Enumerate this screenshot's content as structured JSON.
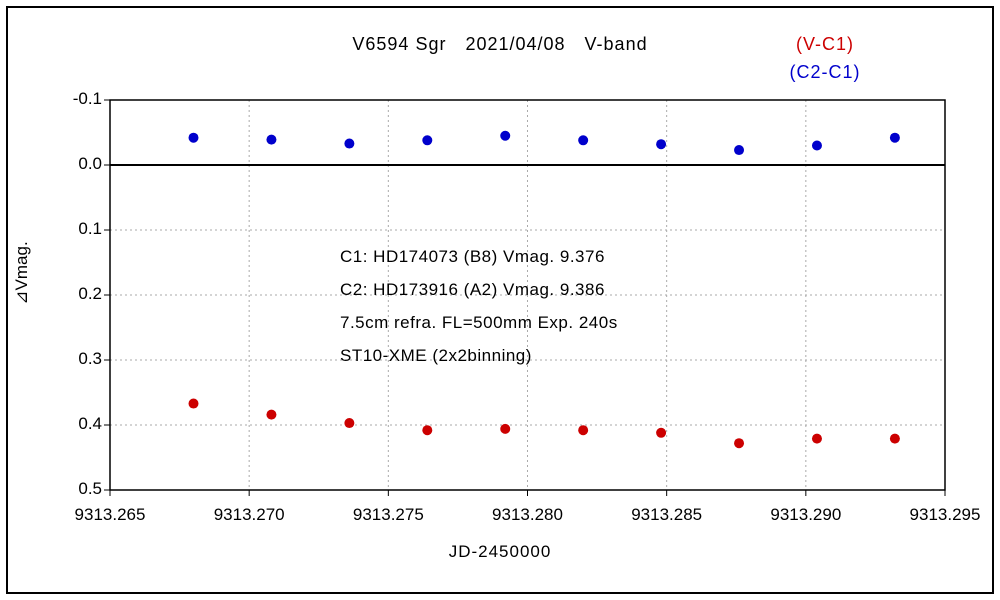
{
  "title": "V6594 Sgr　2021/04/08　V-band",
  "legend": {
    "v_c1": "(V-C1)",
    "c2_c1": "(C2-C1)"
  },
  "annotation": [
    "C1: HD174073 (B8) Vmag. 9.376",
    "C2: HD173916 (A2) Vmag. 9.386",
    "7.5cm refra. FL=500mm  Exp. 240s",
    "ST10-XME (2x2binning)"
  ],
  "colors": {
    "v_c1": "#cc0000",
    "c2_c1": "#0000cc",
    "grid": "#aaaaaa",
    "axis": "#000000",
    "background": "#ffffff"
  },
  "chart_data": {
    "type": "scatter",
    "title": "V6594 Sgr 2021/04/08 V-band",
    "xlabel": "JD-2450000",
    "ylabel": "⊿Vmag.",
    "xlim": [
      9313.265,
      9313.295
    ],
    "ylim": [
      -0.1,
      0.5
    ],
    "y_axis_note": "magnitude axis inverted style: -0.1 at top, 0.5 at bottom",
    "x_ticks": [
      9313.265,
      9313.27,
      9313.275,
      9313.28,
      9313.285,
      9313.29,
      9313.295
    ],
    "y_ticks": [
      -0.1,
      0.0,
      0.1,
      0.2,
      0.3,
      0.4,
      0.5
    ],
    "grid": "dotted",
    "zero_line": true,
    "legend_position": "top-right",
    "marker": "circle",
    "series": [
      {
        "name": "(V-C1)",
        "color": "#cc0000",
        "x": [
          9313.268,
          9313.2708,
          9313.2736,
          9313.2764,
          9313.2792,
          9313.282,
          9313.2848,
          9313.2876,
          9313.2904,
          9313.2932
        ],
        "y": [
          0.367,
          0.384,
          0.397,
          0.408,
          0.406,
          0.408,
          0.412,
          0.428,
          0.421,
          0.421
        ]
      },
      {
        "name": "(C2-C1)",
        "color": "#0000cc",
        "x": [
          9313.268,
          9313.2708,
          9313.2736,
          9313.2764,
          9313.2792,
          9313.282,
          9313.2848,
          9313.2876,
          9313.2904,
          9313.2932
        ],
        "y": [
          -0.042,
          -0.039,
          -0.033,
          -0.038,
          -0.045,
          -0.038,
          -0.032,
          -0.023,
          -0.03,
          -0.042
        ]
      }
    ]
  }
}
